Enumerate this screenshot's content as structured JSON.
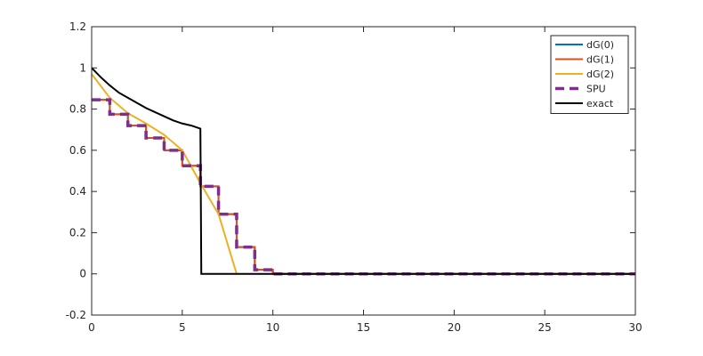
{
  "chart_data": {
    "type": "line",
    "title": "",
    "xlabel": "",
    "ylabel": "",
    "xlim": [
      0,
      30
    ],
    "ylim": [
      -0.2,
      1.2
    ],
    "xticks": [
      0,
      5,
      10,
      15,
      20,
      25,
      30
    ],
    "yticks": [
      -0.2,
      0,
      0.2,
      0.4,
      0.6,
      0.8,
      1,
      1.2
    ],
    "ytick_labels": [
      "-0.2",
      "0",
      "0.2",
      "0.4",
      "0.6",
      "0.8",
      "1",
      "1.2"
    ],
    "grid": false,
    "legend_position": "top-right",
    "series": [
      {
        "name": "dG(0)",
        "color": "#0072BD",
        "style": "solid",
        "x": [
          0,
          1,
          1,
          2,
          2,
          3,
          3,
          4,
          4,
          5,
          5,
          6,
          6,
          7,
          7,
          8,
          8,
          9,
          9,
          10,
          10,
          30
        ],
        "y": [
          0.845,
          0.845,
          0.775,
          0.775,
          0.72,
          0.72,
          0.66,
          0.66,
          0.6,
          0.6,
          0.525,
          0.525,
          0.425,
          0.425,
          0.29,
          0.29,
          0.13,
          0.13,
          0.02,
          0.02,
          0.0,
          0.0
        ]
      },
      {
        "name": "dG(1)",
        "color": "#D95319",
        "style": "solid",
        "x": [
          0,
          1,
          1,
          2,
          2,
          3,
          3,
          4,
          4,
          5,
          5,
          6,
          6,
          7,
          7,
          8,
          8,
          9,
          9,
          10,
          10,
          30
        ],
        "y": [
          0.845,
          0.845,
          0.775,
          0.775,
          0.72,
          0.72,
          0.66,
          0.66,
          0.6,
          0.6,
          0.525,
          0.525,
          0.425,
          0.425,
          0.29,
          0.29,
          0.13,
          0.13,
          0.02,
          0.02,
          0.0,
          0.0
        ]
      },
      {
        "name": "dG(2)",
        "color": "#EDB120",
        "style": "solid",
        "x": [
          0,
          1,
          2,
          3,
          4,
          5,
          6,
          7,
          8
        ],
        "y": [
          0.97,
          0.855,
          0.78,
          0.73,
          0.675,
          0.6,
          0.44,
          0.29,
          0.0
        ]
      },
      {
        "name": "SPU",
        "color": "#7E2F8E",
        "style": "dashed",
        "x": [
          0,
          1,
          1,
          2,
          2,
          3,
          3,
          4,
          4,
          5,
          5,
          6,
          6,
          7,
          7,
          8,
          8,
          9,
          9,
          10,
          10,
          30
        ],
        "y": [
          0.845,
          0.845,
          0.775,
          0.775,
          0.72,
          0.72,
          0.66,
          0.66,
          0.6,
          0.6,
          0.525,
          0.525,
          0.425,
          0.425,
          0.29,
          0.29,
          0.13,
          0.13,
          0.02,
          0.02,
          0.0,
          0.0
        ]
      },
      {
        "name": "exact",
        "color": "#000000",
        "style": "solid",
        "x": [
          0,
          0.5,
          1,
          1.5,
          2,
          2.5,
          3,
          3.5,
          4,
          4.5,
          5,
          5.5,
          6,
          6.05,
          6.1,
          30
        ],
        "y": [
          1.0,
          0.955,
          0.915,
          0.88,
          0.855,
          0.83,
          0.805,
          0.785,
          0.765,
          0.745,
          0.73,
          0.72,
          0.705,
          0.0,
          0.0,
          0.0
        ]
      }
    ]
  }
}
